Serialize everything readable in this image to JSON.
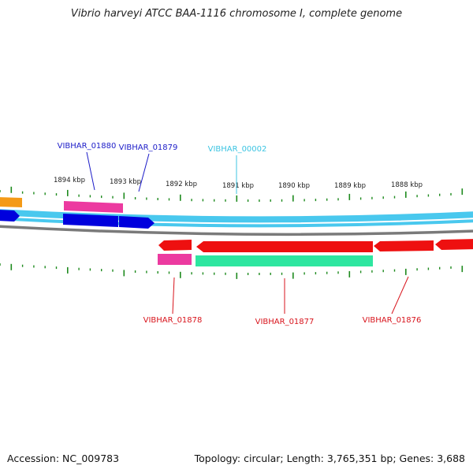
{
  "title": "Vibrio harveyi ATCC BAA-1116 chromosome I, complete genome",
  "footer": {
    "accession": "Accession: NC_009783",
    "summary": "Topology: circular; Length: 3,765,351 bp; Genes: 3,688"
  },
  "colors": {
    "background": "#ffffff",
    "backbone": "#49c8ee",
    "backbone_inner": "#ffffff",
    "ruler": "#7a7a7a",
    "tick": "#1e8a1e",
    "forward_cds": "#0000dd",
    "forward_gene": "#ec3aa0",
    "reverse_cds": "#ee1010",
    "reverse_gene": "#ec3aa0",
    "rna_gene": "#2ee6a0",
    "other_feature": "#f49a17",
    "label_forward": "#1c1cc8",
    "label_reverse": "#d8141c",
    "label_rna": "#3cc4e2"
  },
  "scale_labels": [
    "1894 kbp",
    "1893 kbp",
    "1892 kbp",
    "1891 kbp",
    "1890 kbp",
    "1889 kbp",
    "1888 kbp"
  ],
  "feature_labels": [
    {
      "text": "VIBHAR_01880",
      "strand": "forward"
    },
    {
      "text": "VIBHAR_01879",
      "strand": "forward"
    },
    {
      "text": "VIBHAR_00002",
      "strand": "rna"
    },
    {
      "text": "VIBHAR_01878",
      "strand": "reverse"
    },
    {
      "text": "VIBHAR_01877",
      "strand": "reverse"
    },
    {
      "text": "VIBHAR_01876",
      "strand": "reverse"
    }
  ]
}
